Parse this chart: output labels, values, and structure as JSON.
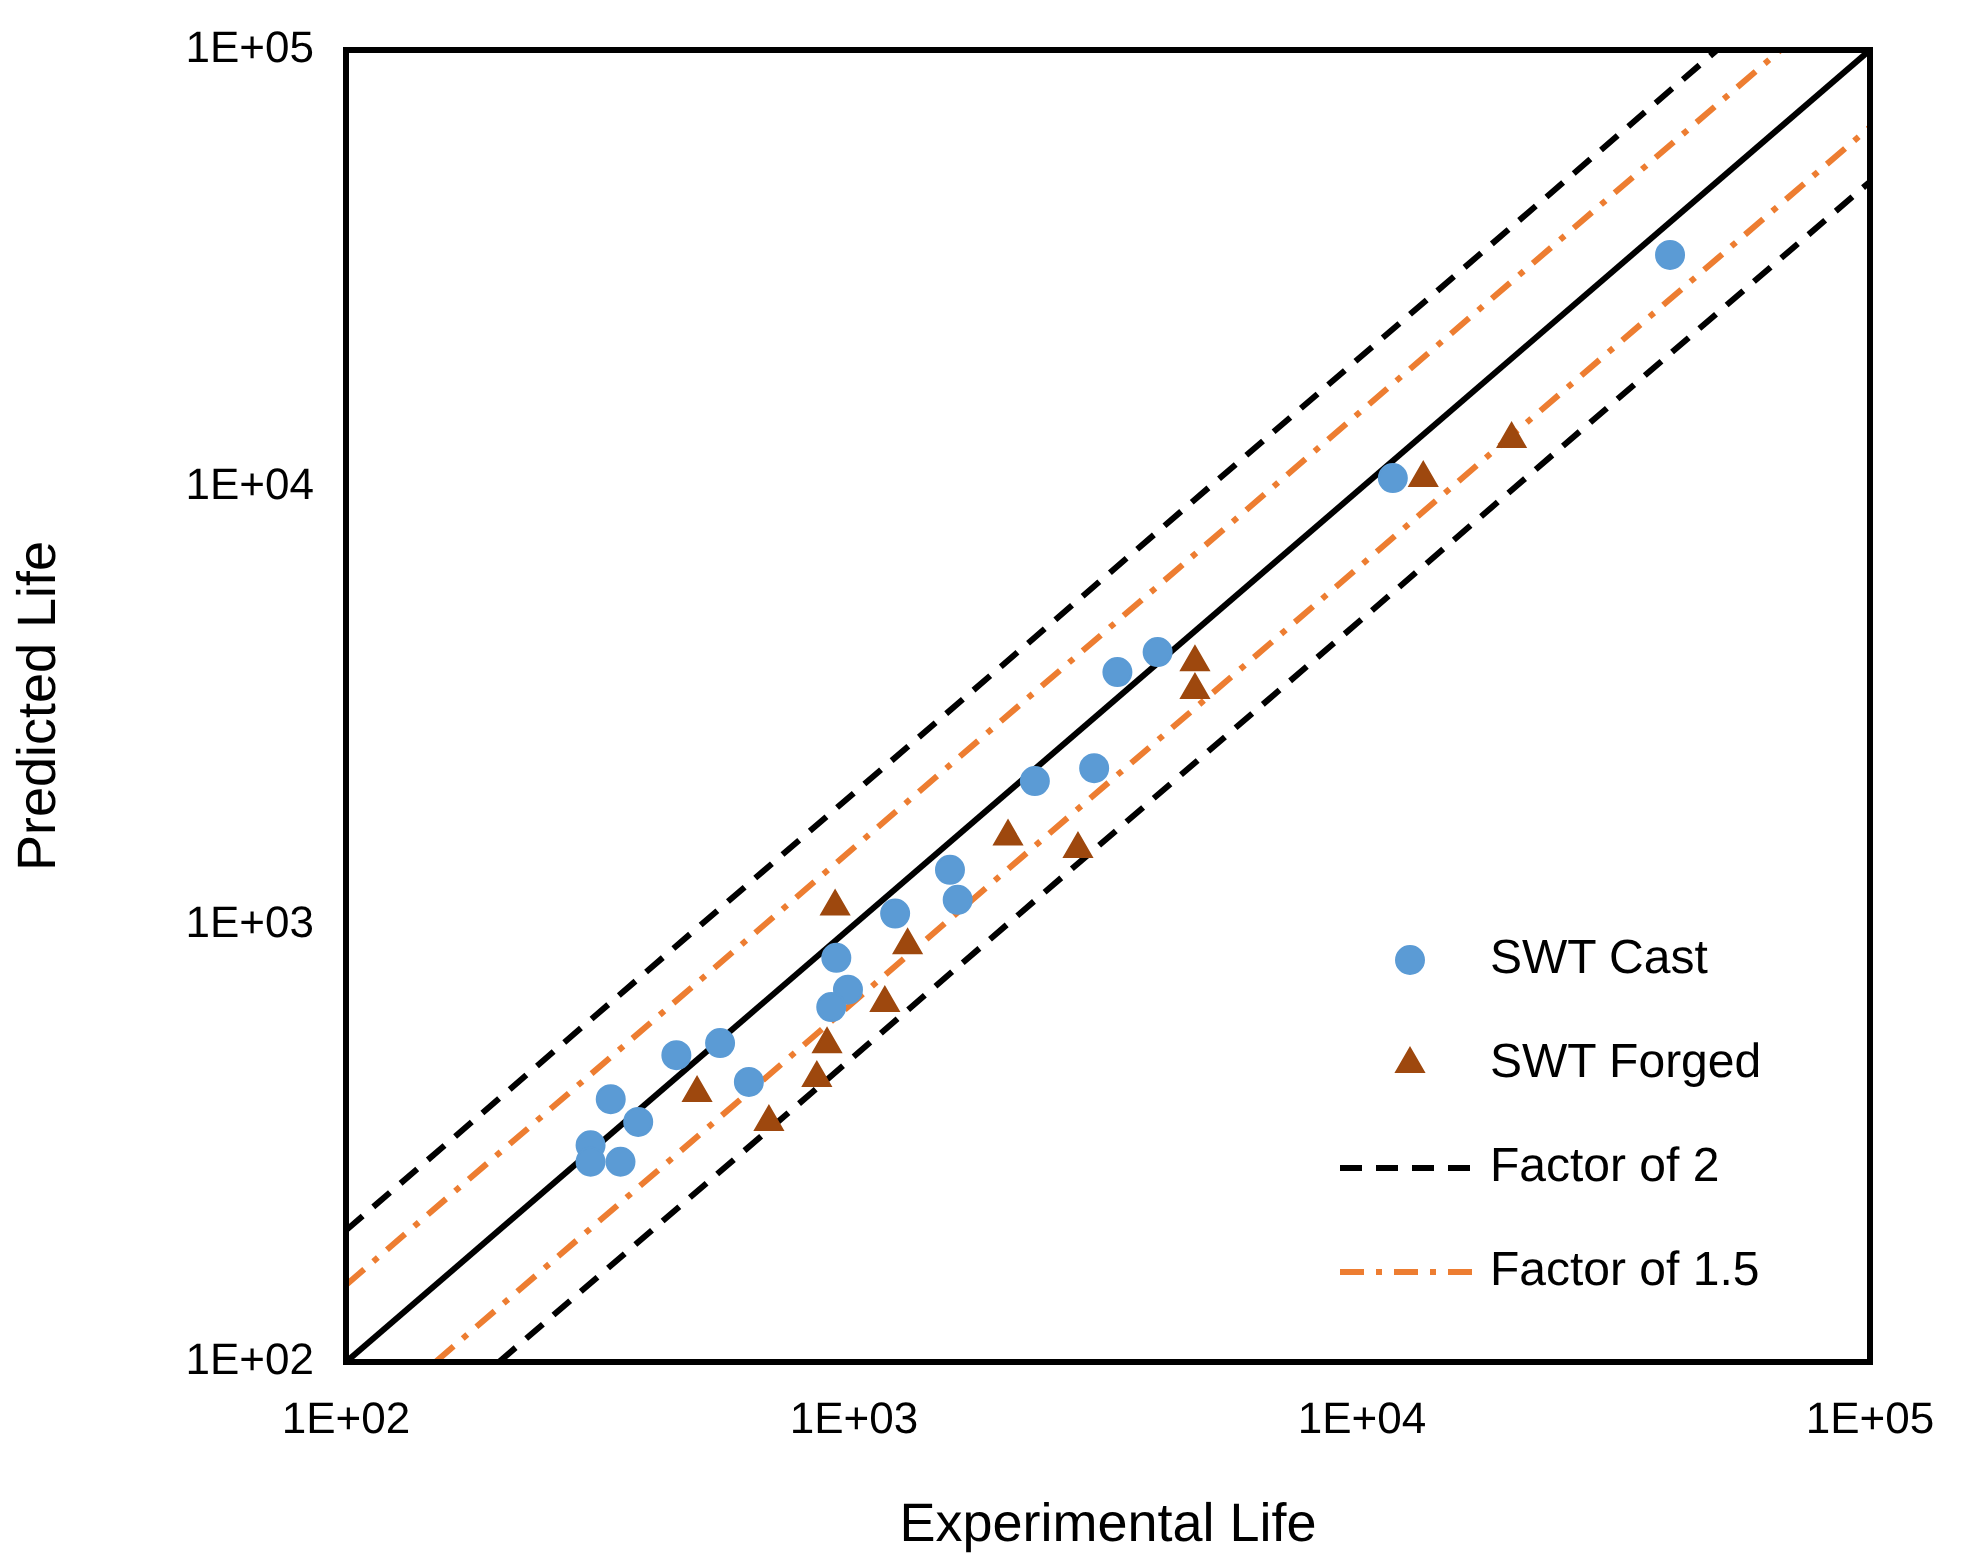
{
  "chart_data": {
    "type": "scatter",
    "xlabel": "Experimental Life",
    "ylabel": "Predicted Life",
    "log": "xy",
    "grid": false,
    "legend": "bottom right",
    "xlim": [
      100,
      100000
    ],
    "ylim": [
      100,
      100000
    ],
    "xticks": [
      {
        "value": 100,
        "label": "1E+02"
      },
      {
        "value": 1000,
        "label": "1E+03"
      },
      {
        "value": 10000,
        "label": "1E+04"
      },
      {
        "value": 100000,
        "label": "1E+05"
      }
    ],
    "yticks": [
      {
        "value": 100,
        "label": "1E+02"
      },
      {
        "value": 1000,
        "label": "1E+03"
      },
      {
        "value": 10000,
        "label": "1E+04"
      },
      {
        "value": 100000,
        "label": "1E+05"
      }
    ],
    "series": [
      {
        "name": "SWT Cast",
        "marker": "circle",
        "color": "#5b9bd5",
        "x": [
          40400,
          11500,
          3960,
          3300,
          2970,
          2270,
          1545,
          1600,
          1205,
          923,
          973,
          902,
          545,
          447,
          621,
          332,
          376,
          303,
          303,
          347
        ],
        "values": [
          34000,
          10500,
          4200,
          3780,
          2280,
          2130,
          1335,
          1140,
          1060,
          840,
          710,
          648,
          536,
          503,
          437,
          399,
          354,
          313,
          287,
          287
        ]
      },
      {
        "name": "SWT Forged",
        "marker": "triangle",
        "color": "#9e480e",
        "x": [
          19700,
          13200,
          4690,
          4690,
          2010,
          2760,
          918,
          1275,
          1150,
          885,
          491,
          845,
          680
        ],
        "values": [
          12900,
          10500,
          3980,
          3440,
          1590,
          1490,
          1100,
          897,
          662,
          533,
          412,
          446,
          354
        ]
      },
      {
        "name": "Factor of 2",
        "type": "line",
        "marker": "none",
        "line_style": "dashed",
        "color": "#000000",
        "x": [
          100,
          50000
        ],
        "values": [
          200,
          100000
        ]
      },
      {
        "type": "line",
        "marker": "none",
        "line_style": "dashed",
        "color": "#000000",
        "x": [
          200,
          100000
        ],
        "values": [
          100,
          50000
        ]
      },
      {
        "name": "Factor of 1.5",
        "type": "line",
        "marker": "none",
        "line_style": "dashdot",
        "color": "#ed7d31",
        "x": [
          100,
          66667
        ],
        "values": [
          150,
          100000
        ]
      },
      {
        "type": "line",
        "marker": "none",
        "line_style": "dashdot",
        "color": "#ed7d31",
        "x": [
          150,
          100000
        ],
        "values": [
          100,
          66667
        ]
      },
      {
        "type": "line",
        "marker": "none",
        "line_style": "solid",
        "color": "#000000",
        "x": [
          100,
          100000
        ],
        "values": [
          100,
          100000
        ]
      }
    ]
  }
}
